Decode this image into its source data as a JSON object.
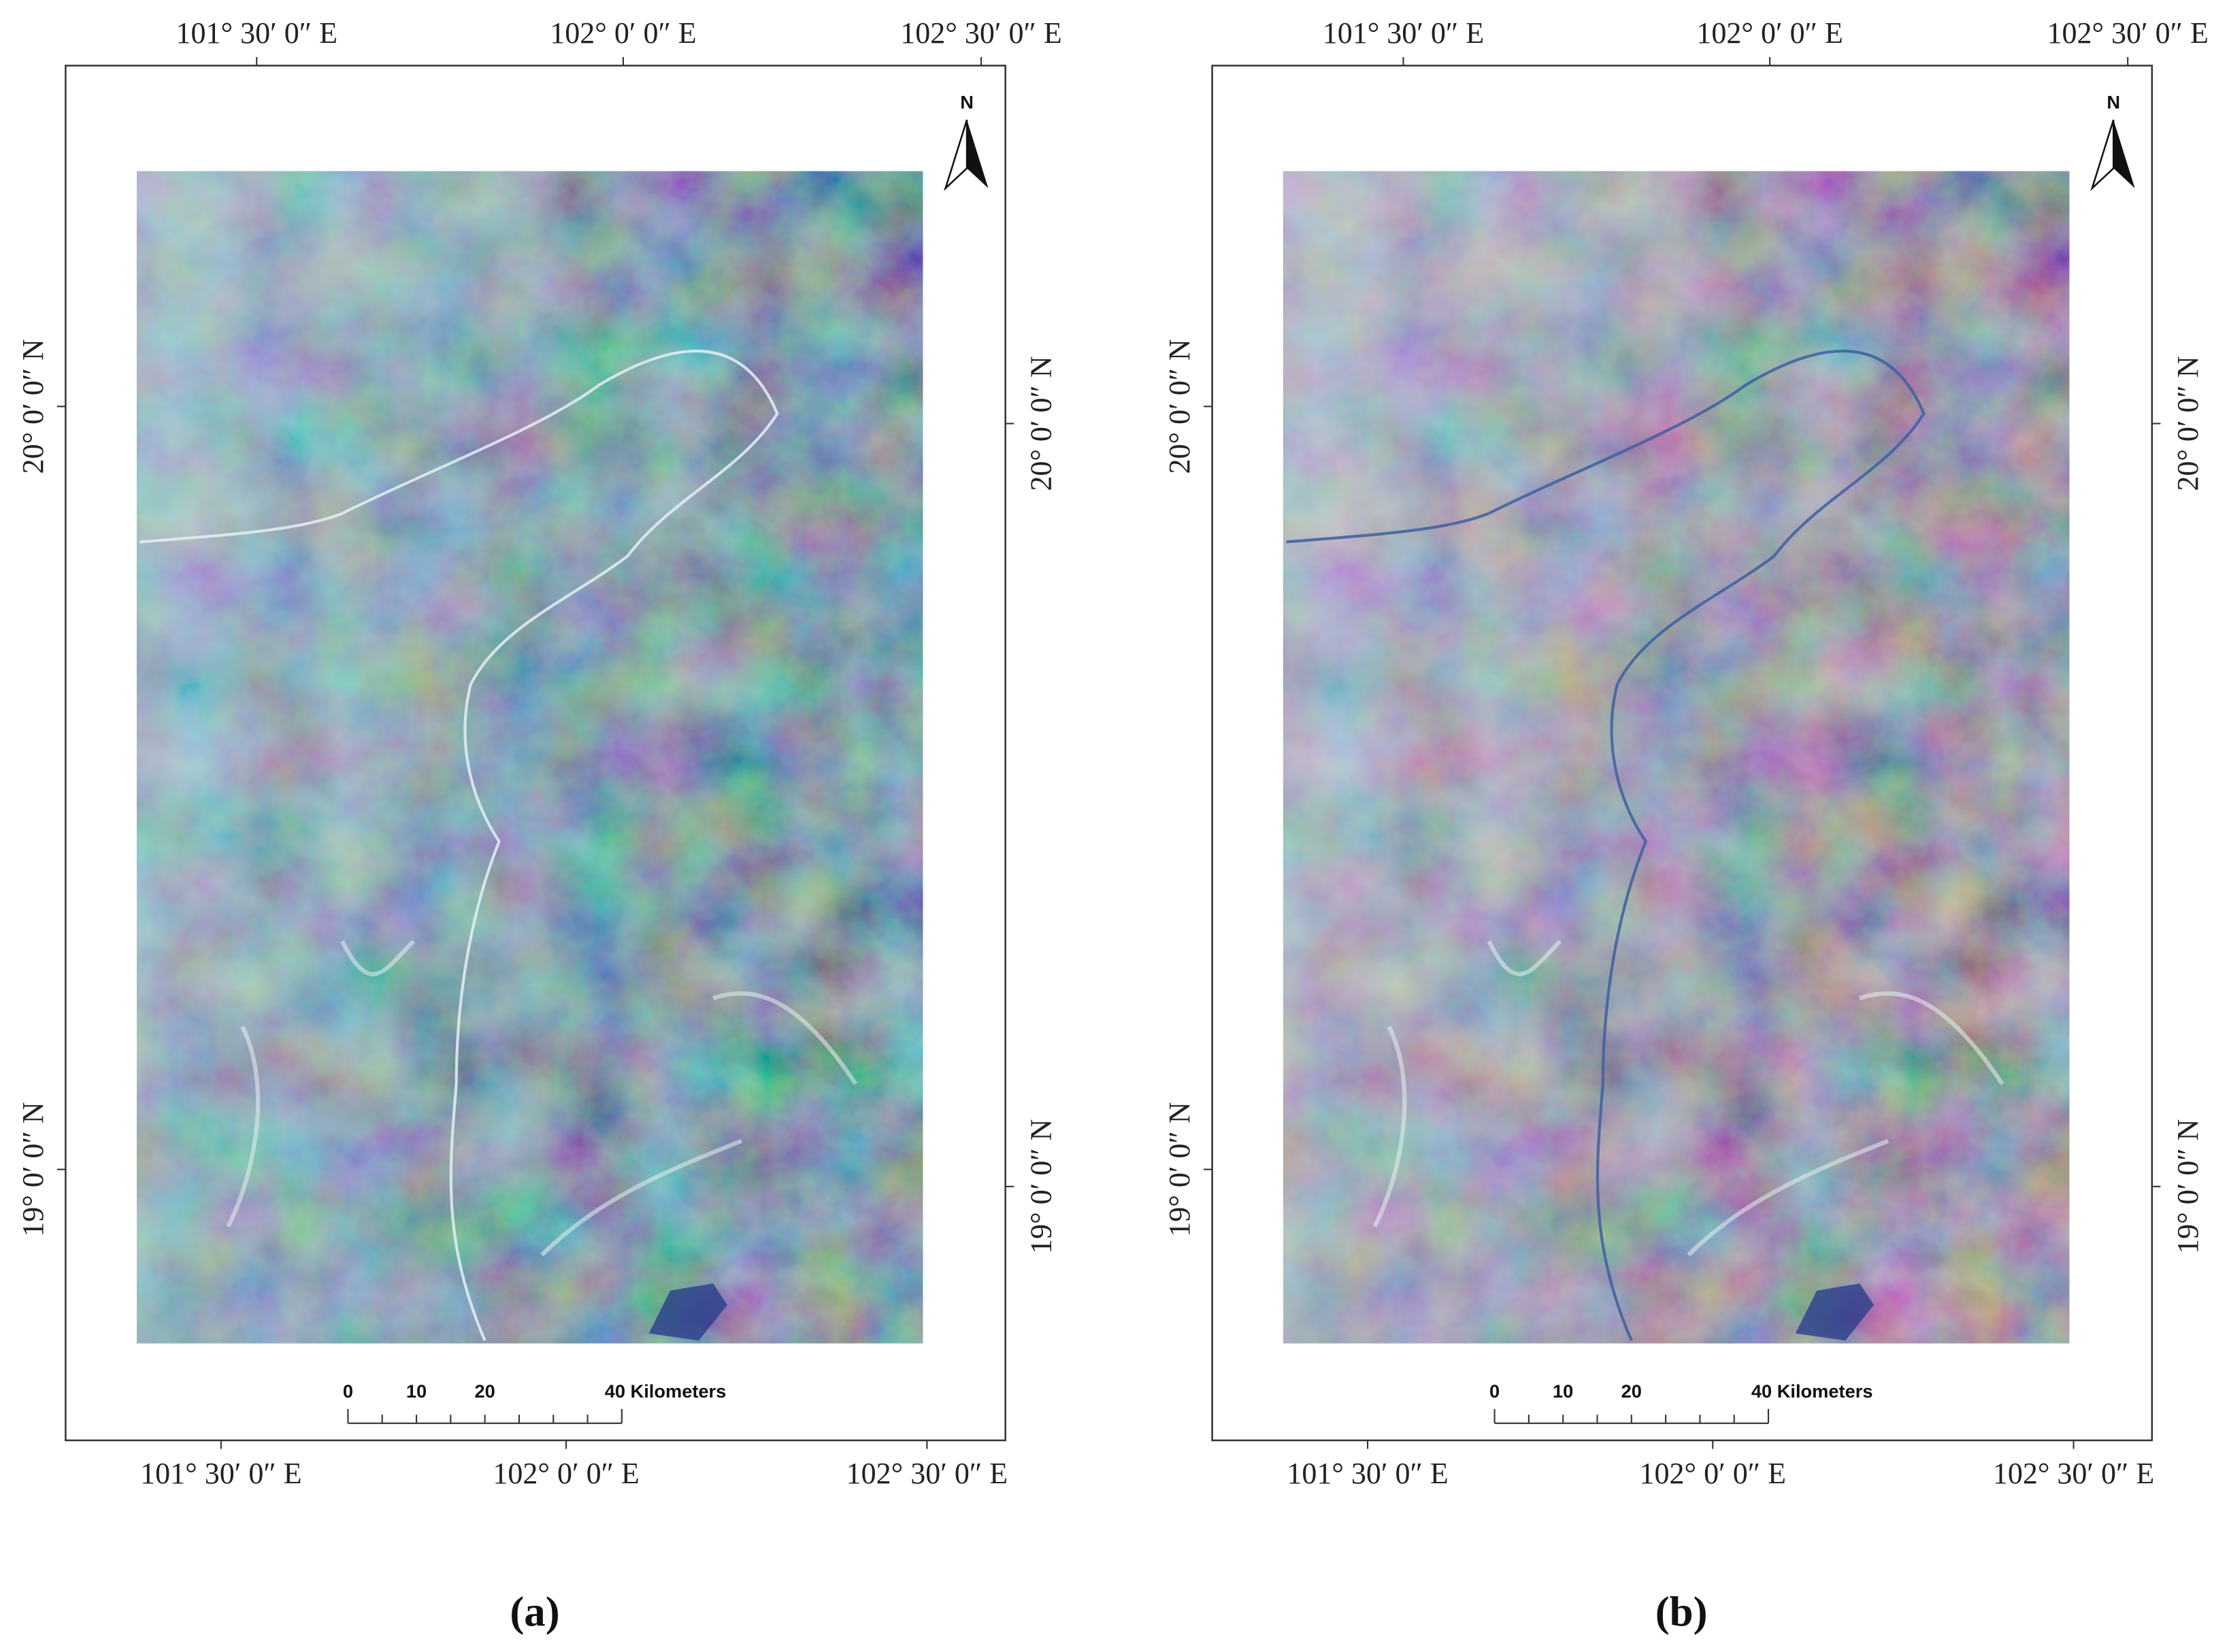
{
  "panels": [
    {
      "caption": "(a)",
      "top_labels": [
        "101° 30′ 0″ E",
        "102° 0′ 0″ E",
        "102° 30′ 0″ E"
      ],
      "bottom_labels": [
        "101° 30′ 0″ E",
        "102° 0′ 0″ E",
        "102° 30′ 0″ E"
      ],
      "left_labels": [
        "20° 0′ 0″ N",
        "19° 0′ 0″ N"
      ],
      "right_labels": [
        "20° 0′ 0″ N",
        "19° 0′ 0″ N"
      ],
      "north": "N",
      "scale_labels": [
        "0",
        "10",
        "20",
        "40 Kilometers"
      ]
    },
    {
      "caption": "(b)",
      "top_labels": [
        "101° 30′ 0″ E",
        "102° 0′ 0″ E",
        "102° 30′ 0″ E"
      ],
      "bottom_labels": [
        "101° 30′ 0″ E",
        "102° 0′ 0″ E",
        "102° 30′ 0″ E"
      ],
      "left_labels": [
        "20° 0′ 0″ N",
        "19° 0′ 0″ N"
      ],
      "right_labels": [
        "20° 0′ 0″ N",
        "19° 0′ 0″ N"
      ],
      "north": "N",
      "scale_labels": [
        "0",
        "10",
        "20",
        "40 Kilometers"
      ]
    }
  ]
}
